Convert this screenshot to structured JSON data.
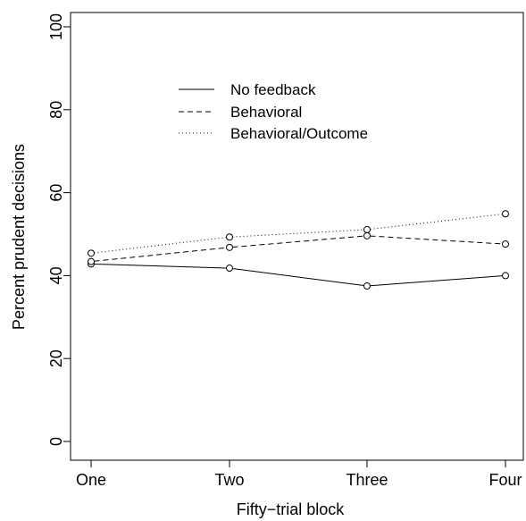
{
  "chart_data": {
    "type": "line",
    "categories": [
      "One",
      "Two",
      "Three",
      "Four"
    ],
    "xlabel": "Fifty−trial block",
    "ylabel": "Percent prudent decisions",
    "ylim": [
      0,
      100
    ],
    "yticks": [
      "0",
      "20",
      "40",
      "60",
      "80",
      "100"
    ],
    "grid": false,
    "legend_position": "top-center",
    "series": [
      {
        "name": "No feedback",
        "line_style": "solid",
        "values": [
          42.8,
          41.8,
          37.5,
          40.0
        ]
      },
      {
        "name": "Behavioral",
        "line_style": "dashed",
        "values": [
          43.4,
          46.8,
          49.6,
          47.6
        ]
      },
      {
        "name": "Behavioral/Outcome",
        "line_style": "dotted",
        "values": [
          45.4,
          49.3,
          51.1,
          54.9
        ]
      }
    ]
  }
}
